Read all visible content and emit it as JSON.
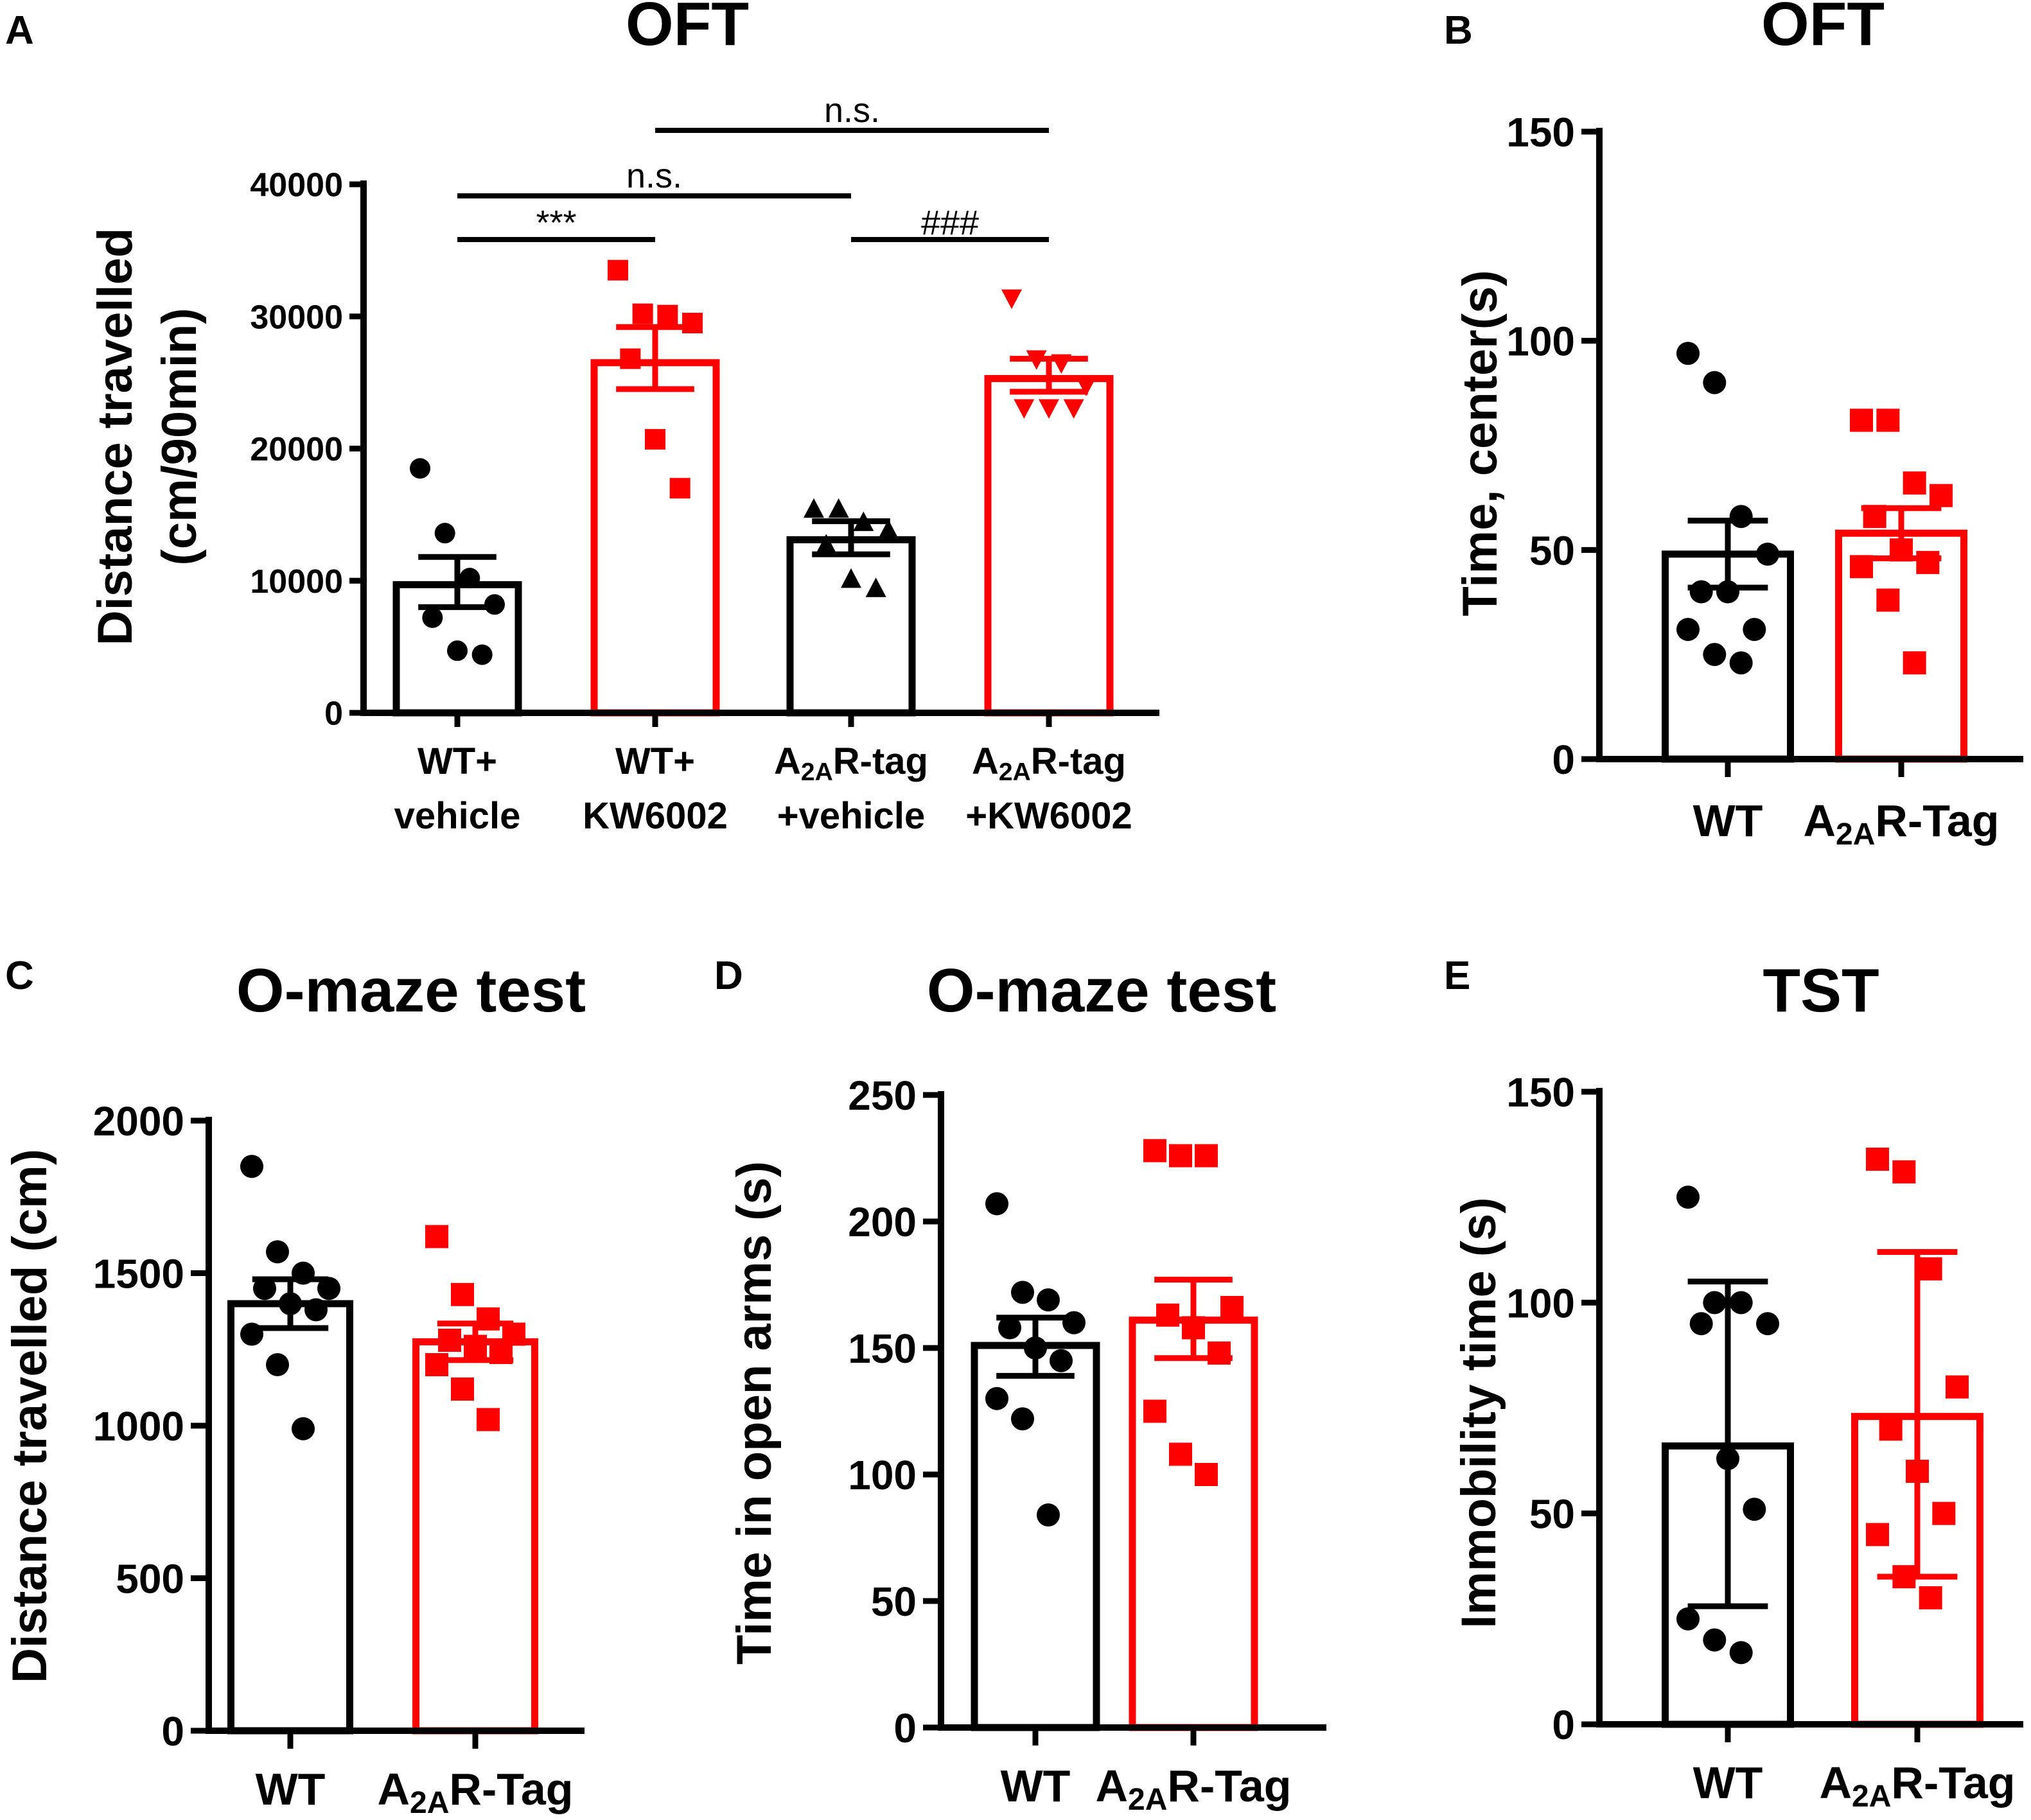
{
  "colors": {
    "wt": "#000000",
    "tag": "#ff0000",
    "axis": "#000000",
    "background": "#ffffff"
  },
  "chart_data": [
    {
      "panel": "A",
      "type": "bar",
      "title": "OFT",
      "ylabel_lines": [
        "Distance travelled",
        "(cm/90min)"
      ],
      "xlabel": "",
      "ylim": [
        0,
        40000
      ],
      "yticks": [
        0,
        10000,
        20000,
        30000,
        40000
      ],
      "ytick_labels": [
        "0",
        "10000",
        "20000",
        "30000",
        "40000"
      ],
      "grid": false,
      "error_bars": "SEM",
      "categories": [
        {
          "lines": [
            {
              "text": "WT+"
            },
            {
              "text": "vehicle"
            }
          ]
        },
        {
          "lines": [
            {
              "text": "WT+"
            },
            {
              "text": "KW6002"
            }
          ]
        },
        {
          "lines": [
            {
              "text": "A",
              "sub": "2A",
              "post": "R-tag"
            },
            {
              "text": "+vehicle"
            }
          ]
        },
        {
          "lines": [
            {
              "text": "A",
              "sub": "2A",
              "post": "R-tag"
            },
            {
              "text": "+KW6002"
            }
          ]
        }
      ],
      "series": [
        {
          "name": "WT+vehicle",
          "color": "wt",
          "marker": "circle",
          "mean": 9700,
          "err_low": 8000,
          "err_high": 11800,
          "points": [
            18500,
            13600,
            10200,
            8200,
            7200,
            4700,
            4400
          ]
        },
        {
          "name": "WT+KW6002",
          "color": "tag",
          "marker": "square",
          "mean": 26500,
          "err_low": 24500,
          "err_high": 29200,
          "points": [
            33500,
            30200,
            30100,
            29500,
            26800,
            20700,
            17000
          ]
        },
        {
          "name": "A2AR-tag+vehicle",
          "color": "wt",
          "marker": "triangle-up",
          "mean": 13100,
          "err_low": 12000,
          "err_high": 14500,
          "points": [
            15500,
            15500,
            14500,
            13900,
            12800,
            10200,
            9500
          ]
        },
        {
          "name": "A2AR-tag+KW6002",
          "color": "tag",
          "marker": "triangle-down",
          "mean": 25300,
          "err_low": 24300,
          "err_high": 26800,
          "points": [
            31300,
            26700,
            26400,
            24700,
            23000,
            23000,
            23000
          ]
        }
      ],
      "significance": [
        {
          "from": 0,
          "to": 1,
          "label": "***",
          "level": 1
        },
        {
          "from": 0,
          "to": 2,
          "label": "n.s.",
          "level": 2
        },
        {
          "from": 2,
          "to": 3,
          "label": "###",
          "level": 1
        },
        {
          "from": 1,
          "to": 3,
          "label": "n.s.",
          "level": 3
        }
      ]
    },
    {
      "panel": "B",
      "type": "bar",
      "title": "OFT",
      "ylabel_lines": [
        "Time, center(s)"
      ],
      "xlabel": "",
      "ylim": [
        0,
        150
      ],
      "yticks": [
        0,
        50,
        100,
        150
      ],
      "ytick_labels": [
        "0",
        "50",
        "100",
        "150"
      ],
      "grid": false,
      "error_bars": "SEM",
      "categories": [
        {
          "lines": [
            {
              "text": "WT"
            }
          ]
        },
        {
          "lines": [
            {
              "text": "A",
              "sub": "2A",
              "post": "R-Tag"
            }
          ]
        }
      ],
      "series": [
        {
          "name": "WT",
          "color": "wt",
          "marker": "circle",
          "mean": 49,
          "err_low": 41,
          "err_high": 57,
          "points": [
            97,
            90,
            58,
            49,
            40,
            40,
            31,
            31,
            25,
            23
          ]
        },
        {
          "name": "A2AR-Tag",
          "color": "tag",
          "marker": "square",
          "mean": 54,
          "err_low": 48,
          "err_high": 60,
          "points": [
            81,
            81,
            66,
            63,
            58,
            50,
            47,
            46,
            38,
            23
          ]
        }
      ],
      "significance": []
    },
    {
      "panel": "C",
      "type": "bar",
      "title": "O-maze test",
      "ylabel_lines": [
        "Distance travelled (cm)"
      ],
      "xlabel": "",
      "ylim": [
        0,
        2000
      ],
      "yticks": [
        0,
        500,
        1000,
        1500,
        2000
      ],
      "ytick_labels": [
        "0",
        "500",
        "1000",
        "1500",
        "2000"
      ],
      "grid": false,
      "error_bars": "SEM",
      "categories": [
        {
          "lines": [
            {
              "text": "WT"
            }
          ]
        },
        {
          "lines": [
            {
              "text": "A",
              "sub": "2A",
              "post": "R-Tag"
            }
          ]
        }
      ],
      "series": [
        {
          "name": "WT",
          "color": "wt",
          "marker": "circle",
          "mean": 1400,
          "err_low": 1320,
          "err_high": 1480,
          "points": [
            1850,
            1570,
            1500,
            1450,
            1450,
            1400,
            1380,
            1300,
            1200,
            990
          ]
        },
        {
          "name": "A2AR-Tag",
          "color": "tag",
          "marker": "square",
          "mean": 1275,
          "err_low": 1215,
          "err_high": 1335,
          "points": [
            1620,
            1430,
            1350,
            1300,
            1280,
            1260,
            1240,
            1200,
            1120,
            1020
          ]
        }
      ],
      "significance": []
    },
    {
      "panel": "D",
      "type": "bar",
      "title": "O-maze test",
      "ylabel_lines": [
        "Time in open arms (s)"
      ],
      "xlabel": "",
      "ylim": [
        0,
        250
      ],
      "yticks": [
        0,
        50,
        100,
        150,
        200,
        250
      ],
      "ytick_labels": [
        "0",
        "50",
        "100",
        "150",
        "200",
        "250"
      ],
      "grid": false,
      "error_bars": "SEM",
      "categories": [
        {
          "lines": [
            {
              "text": "WT"
            }
          ]
        },
        {
          "lines": [
            {
              "text": "A",
              "sub": "2A",
              "post": "R-Tag"
            }
          ]
        }
      ],
      "series": [
        {
          "name": "WT",
          "color": "wt",
          "marker": "circle",
          "mean": 151,
          "err_low": 139,
          "err_high": 162,
          "points": [
            207,
            172,
            169,
            160,
            158,
            150,
            145,
            130,
            122,
            84
          ]
        },
        {
          "name": "A2AR-Tag",
          "color": "tag",
          "marker": "square",
          "mean": 161,
          "err_low": 146,
          "err_high": 177,
          "points": [
            228,
            226,
            226,
            166,
            163,
            158,
            148,
            125,
            108,
            100
          ]
        }
      ],
      "significance": []
    },
    {
      "panel": "E",
      "type": "bar",
      "title": "TST",
      "ylabel_lines": [
        "Immobility time (s)"
      ],
      "xlabel": "",
      "ylim": [
        0,
        150
      ],
      "yticks": [
        0,
        50,
        100,
        150
      ],
      "ytick_labels": [
        "0",
        "50",
        "100",
        "150"
      ],
      "grid": false,
      "error_bars": "SD",
      "categories": [
        {
          "lines": [
            {
              "text": "WT"
            }
          ]
        },
        {
          "lines": [
            {
              "text": "A",
              "sub": "2A",
              "post": "R-Tag"
            }
          ]
        }
      ],
      "series": [
        {
          "name": "WT",
          "color": "wt",
          "marker": "circle",
          "mean": 66,
          "err_low": 28,
          "err_high": 105,
          "points": [
            125,
            100,
            100,
            95,
            95,
            63,
            51,
            25,
            20,
            17
          ]
        },
        {
          "name": "A2AR-Tag",
          "color": "tag",
          "marker": "square",
          "mean": 73,
          "err_low": 35,
          "err_high": 112,
          "points": [
            134,
            131,
            108,
            80,
            70,
            60,
            50,
            45,
            35,
            30
          ]
        }
      ],
      "significance": []
    }
  ]
}
